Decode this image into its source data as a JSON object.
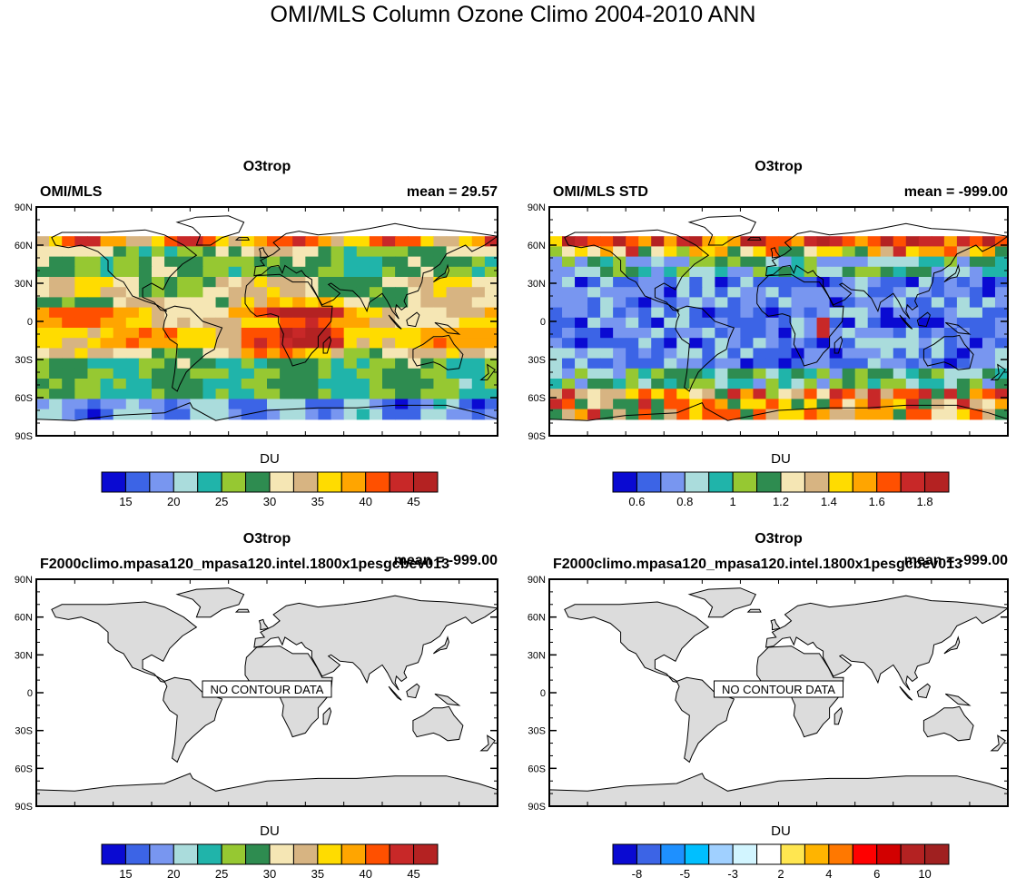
{
  "title": "OMI/MLS Column Ozone Climo 2004-2010 ANN",
  "lat_ticks": [
    "90N",
    "60N",
    "30N",
    "0",
    "30S",
    "60S",
    "90S"
  ],
  "colors": {
    "standard": [
      "#0a0ad2",
      "#3c64e6",
      "#7896f0",
      "#aadcdc",
      "#20b4aa",
      "#96c832",
      "#2e8c50",
      "#f5e6b4",
      "#d7b482",
      "#ffdc00",
      "#ffa500",
      "#ff5000",
      "#c82828",
      "#b42222"
    ],
    "diff": [
      "#0a0ad2",
      "#3c64e6",
      "#1e90ff",
      "#00bfff",
      "#a0d0ff",
      "#d2f5ff",
      "#ffffff",
      "#ffe650",
      "#ffb400",
      "#ff7800",
      "#ff0000",
      "#d20000",
      "#b42222",
      "#a02020"
    ],
    "land": "#dcdcdc"
  },
  "chart_data": [
    {
      "type": "heatmap",
      "title": "O3trop",
      "left_label": "OMI/MLS",
      "right_label": "mean =  29.57",
      "colorbar": {
        "label": "DU",
        "ticks": [
          "15",
          "20",
          "25",
          "30",
          "35",
          "40",
          "45"
        ],
        "palette": "standard"
      },
      "no_data": false
    },
    {
      "type": "heatmap",
      "title": "O3trop",
      "left_label": "OMI/MLS STD",
      "right_label": "mean = -999.00",
      "colorbar": {
        "label": "DU",
        "ticks": [
          "0.6",
          "0.8",
          "1",
          "1.2",
          "1.4",
          "1.6",
          "1.8"
        ],
        "palette": "standard"
      },
      "no_data": false
    },
    {
      "type": "heatmap",
      "title": "O3trop",
      "left_label": "F2000climo.mpasa120_mpasa120.intel.1800x1pesgcbev013",
      "right_label": "mean = -999.00",
      "colorbar": {
        "label": "DU",
        "ticks": [
          "15",
          "20",
          "25",
          "30",
          "35",
          "40",
          "45"
        ],
        "palette": "standard"
      },
      "no_data": true,
      "no_data_text": "NO CONTOUR DATA"
    },
    {
      "type": "heatmap",
      "title": "O3trop",
      "left_label": "F2000climo.mpasa120_mpasa120.intel.1800x1pesgcbev013",
      "right_label": "mean = -999.00",
      "colorbar": {
        "label": "DU",
        "ticks": [
          "-8",
          "-5",
          "-3",
          "2",
          "4",
          "6",
          "10"
        ],
        "palette": "diff"
      },
      "no_data": true,
      "no_data_text": "NO CONTOUR DATA"
    }
  ]
}
